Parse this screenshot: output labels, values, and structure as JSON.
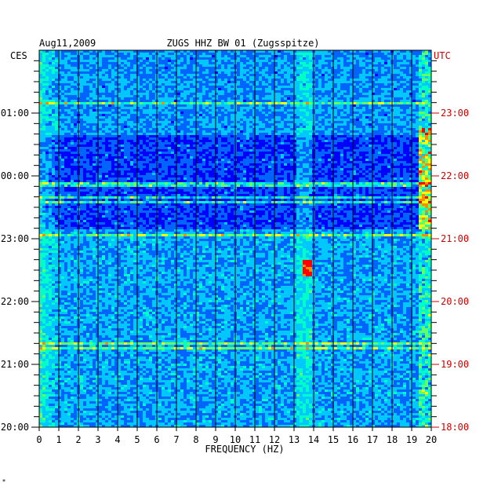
{
  "chart_data": {
    "type": "heatmap",
    "title": "ZUGS HHZ BW 01 (Zugsspitze)",
    "date": "Aug11,2009",
    "xlabel": "FREQUENCY (HZ)",
    "left_timezone": "CES",
    "right_timezone": "UTC",
    "xlim": [
      0,
      20
    ],
    "x_ticks": [
      "0",
      "1",
      "2",
      "3",
      "4",
      "5",
      "6",
      "7",
      "8",
      "9",
      "10",
      "11",
      "12",
      "13",
      "14",
      "15",
      "16",
      "17",
      "18",
      "19",
      "20"
    ],
    "left_hour_labels": [
      "01:00",
      "00:00",
      "23:00",
      "22:00",
      "21:00",
      "20:00"
    ],
    "right_hour_labels": [
      "23:00",
      "22:00",
      "21:00",
      "20:00",
      "19:00",
      "18:00"
    ],
    "hours_span": 6,
    "grid": true,
    "colormap": [
      "#00008b",
      "#0000ff",
      "#0064ff",
      "#00c8ff",
      "#00ffc8",
      "#64ff64",
      "#ffff00",
      "#ff8c00",
      "#ff0000"
    ],
    "left_label_color": "#000000",
    "right_label_color": "#cc0000",
    "footnote": "*"
  }
}
